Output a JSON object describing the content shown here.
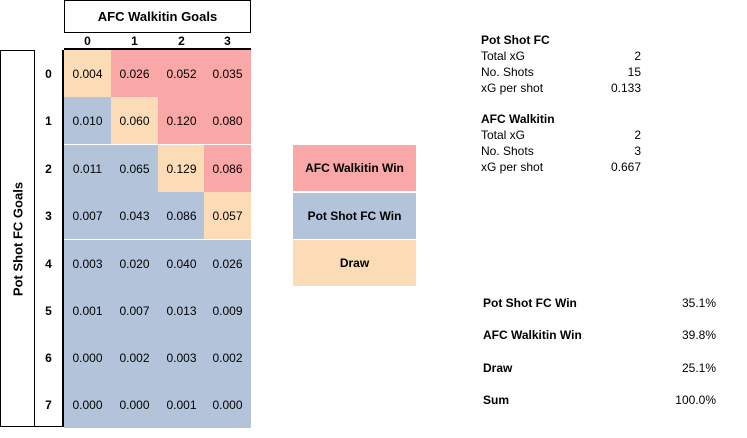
{
  "chart_data": {
    "type": "heatmap",
    "title": "AFC Walkitin Goals",
    "ylabel": "Pot Shot FC Goals",
    "columns": [
      "0",
      "1",
      "2",
      "3"
    ],
    "rows": [
      "0",
      "1",
      "2",
      "3",
      "4",
      "5",
      "6",
      "7"
    ],
    "values": [
      [
        "0.004",
        "0.026",
        "0.052",
        "0.035"
      ],
      [
        "0.010",
        "0.060",
        "0.120",
        "0.080"
      ],
      [
        "0.011",
        "0.065",
        "0.129",
        "0.086"
      ],
      [
        "0.007",
        "0.043",
        "0.086",
        "0.057"
      ],
      [
        "0.003",
        "0.020",
        "0.040",
        "0.026"
      ],
      [
        "0.001",
        "0.007",
        "0.013",
        "0.009"
      ],
      [
        "0.000",
        "0.002",
        "0.003",
        "0.002"
      ],
      [
        "0.000",
        "0.000",
        "0.001",
        "0.000"
      ]
    ],
    "colors": {
      "away_win": "#f9a7a7",
      "home_win": "#b3c4da",
      "draw": "#fcdcb6"
    }
  },
  "legend": [
    {
      "label": "AFC Walkitin Win",
      "key": "away_win"
    },
    {
      "label": "Pot Shot FC Win",
      "key": "home_win"
    },
    {
      "label": "Draw",
      "key": "draw"
    }
  ],
  "teams": [
    {
      "name": "Pot Shot FC",
      "stats": [
        {
          "label": "Total xG",
          "value": "2"
        },
        {
          "label": "No. Shots",
          "value": "15"
        },
        {
          "label": "xG per shot",
          "value": "0.133"
        }
      ]
    },
    {
      "name": "AFC Walkitin",
      "stats": [
        {
          "label": "Total xG",
          "value": "2"
        },
        {
          "label": "No. Shots",
          "value": "3"
        },
        {
          "label": "xG per shot",
          "value": "0.667"
        }
      ]
    }
  ],
  "summary": [
    {
      "label": "Pot Shot FC Win",
      "value": "35.1%"
    },
    {
      "label": "AFC Walkitin Win",
      "value": "39.8%"
    },
    {
      "label": "Draw",
      "value": "25.1%"
    },
    {
      "label": "Sum",
      "value": "100.0%"
    }
  ]
}
